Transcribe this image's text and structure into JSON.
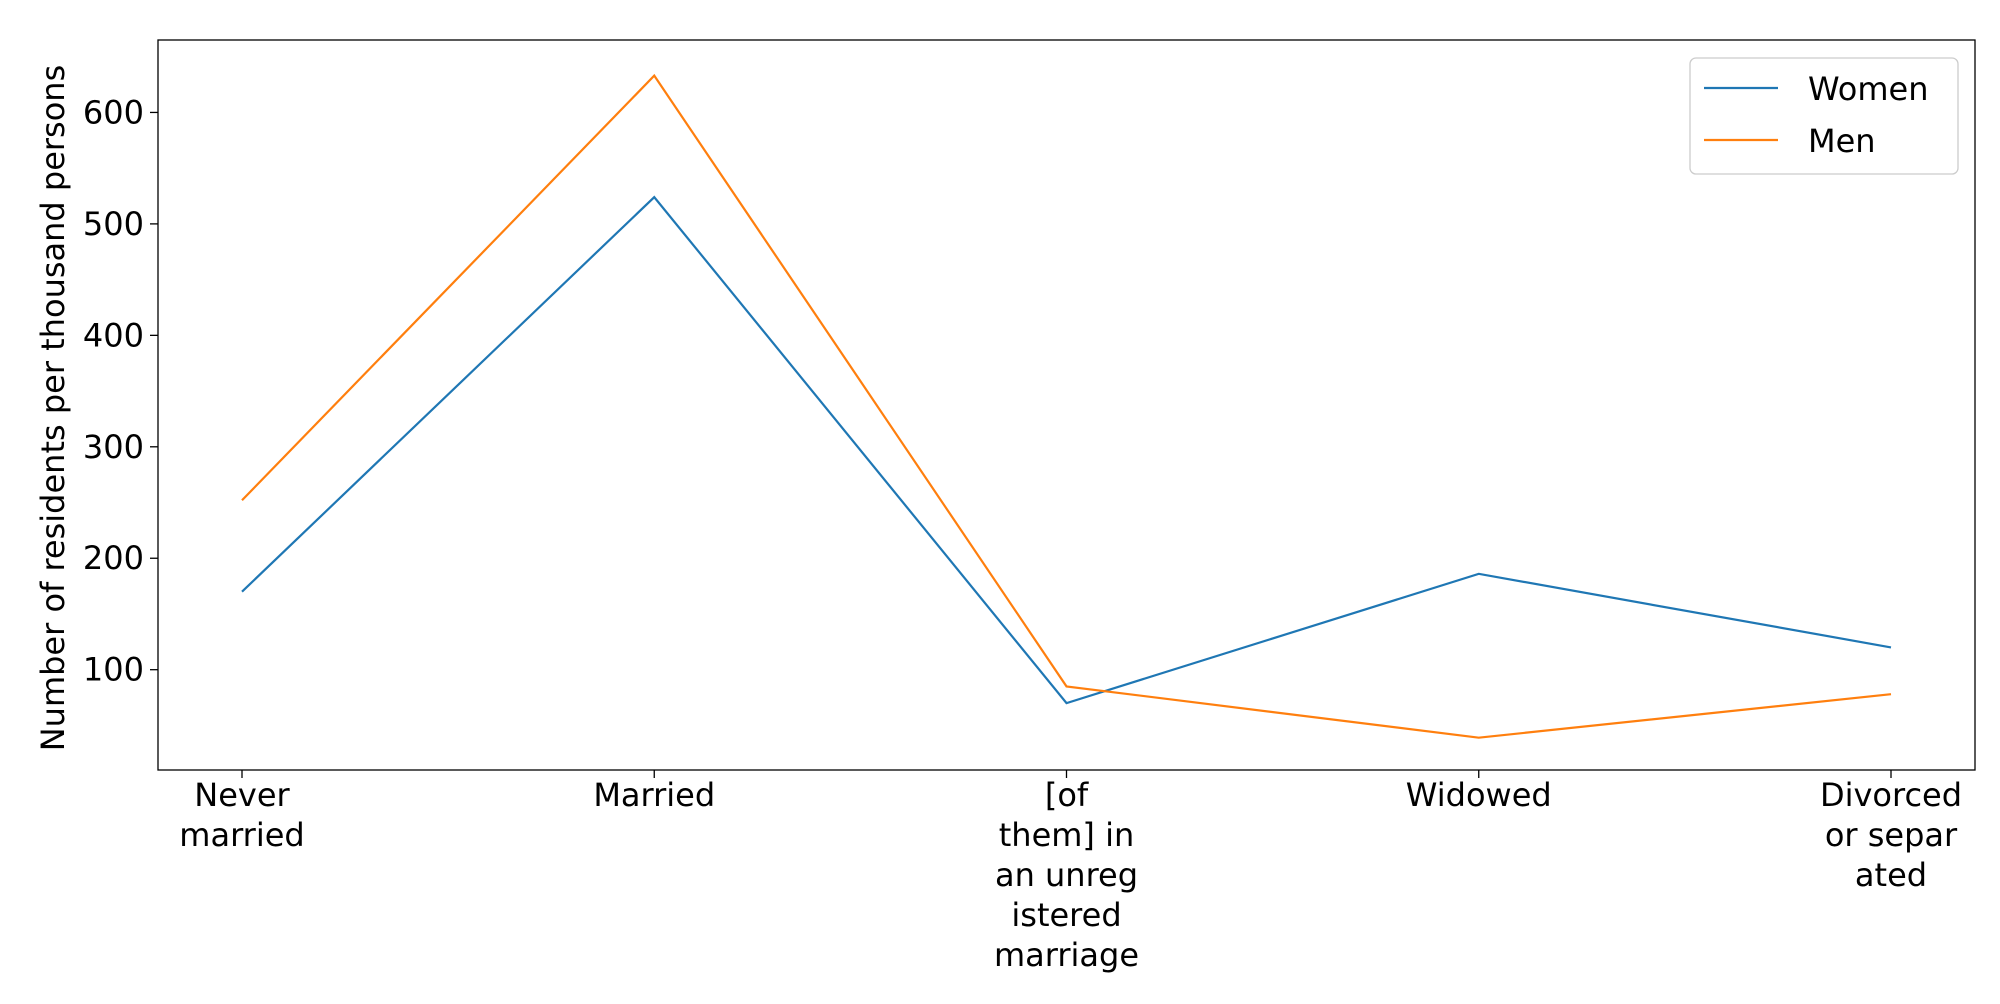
{
  "chart_data": {
    "type": "line",
    "title": "",
    "xlabel": "",
    "ylabel": "Number of residents per thousand persons",
    "categories": [
      [
        "Never",
        "married"
      ],
      [
        "Married"
      ],
      [
        "[of",
        "them] in",
        "an unreg",
        "istered",
        "marriage"
      ],
      [
        "Widowed"
      ],
      [
        "Divorced",
        "or separ",
        "ated"
      ]
    ],
    "yticks": [
      100,
      200,
      300,
      400,
      500,
      600
    ],
    "ylim": [
      10,
      665
    ],
    "grid": false,
    "legend_position": "upper right",
    "series": [
      {
        "name": "Women",
        "color": "#1f77b4",
        "values": [
          170,
          524,
          70,
          186,
          120
        ]
      },
      {
        "name": "Men",
        "color": "#ff7f0e",
        "values": [
          252,
          633,
          85,
          39,
          78
        ]
      }
    ]
  }
}
